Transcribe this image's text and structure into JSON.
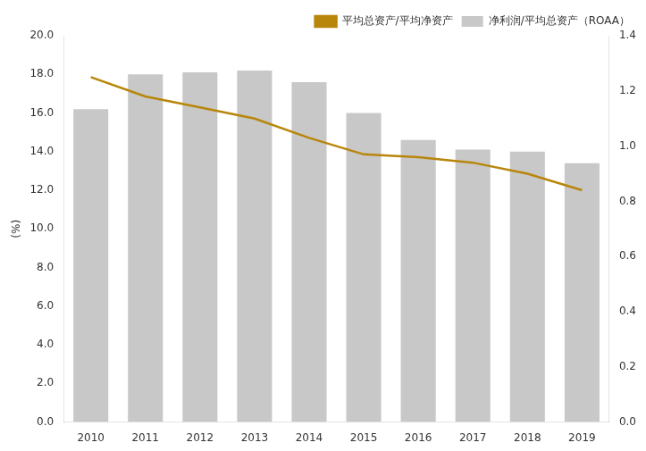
{
  "chart_data": {
    "type": "bar",
    "categories": [
      "2010",
      "2011",
      "2012",
      "2013",
      "2014",
      "2015",
      "2016",
      "2017",
      "2018",
      "2019"
    ],
    "series": [
      {
        "name": "净利润/平均总资产（ROAA）",
        "type": "bar",
        "color": "#c8c8c8",
        "values": [
          16.2,
          18.0,
          18.1,
          18.2,
          17.6,
          16.0,
          14.6,
          14.1,
          14.0,
          13.4
        ]
      },
      {
        "name": "平均总资产/平均净资产",
        "type": "line",
        "color": "#b8860b",
        "axis": "y2",
        "values": [
          1.25,
          1.18,
          1.14,
          1.1,
          1.03,
          0.97,
          0.96,
          0.94,
          0.9,
          0.84
        ]
      }
    ],
    "ylabel": "(%)",
    "ylim": [
      0.0,
      20.0
    ],
    "yticks": [
      {
        "value": 0,
        "label": "0.0"
      },
      {
        "value": 2,
        "label": "2.0"
      },
      {
        "value": 4,
        "label": "4.0"
      },
      {
        "value": 6,
        "label": "6.0"
      },
      {
        "value": 8,
        "label": "8.0"
      },
      {
        "value": 10,
        "label": "10.0"
      },
      {
        "value": 12,
        "label": "12.0"
      },
      {
        "value": 14,
        "label": "14.0"
      },
      {
        "value": 16,
        "label": "16.0"
      },
      {
        "value": 18,
        "label": "18.0"
      },
      {
        "value": 20,
        "label": "20.0"
      }
    ],
    "y2lim": [
      0.0,
      1.4
    ],
    "y2ticks": [
      {
        "value": 0,
        "label": "0.0"
      },
      0.2,
      0.4,
      0.6,
      0.8,
      {
        "value": 1,
        "label": "1.0"
      },
      1.2,
      1.4
    ],
    "grid": false,
    "legend": "top"
  }
}
